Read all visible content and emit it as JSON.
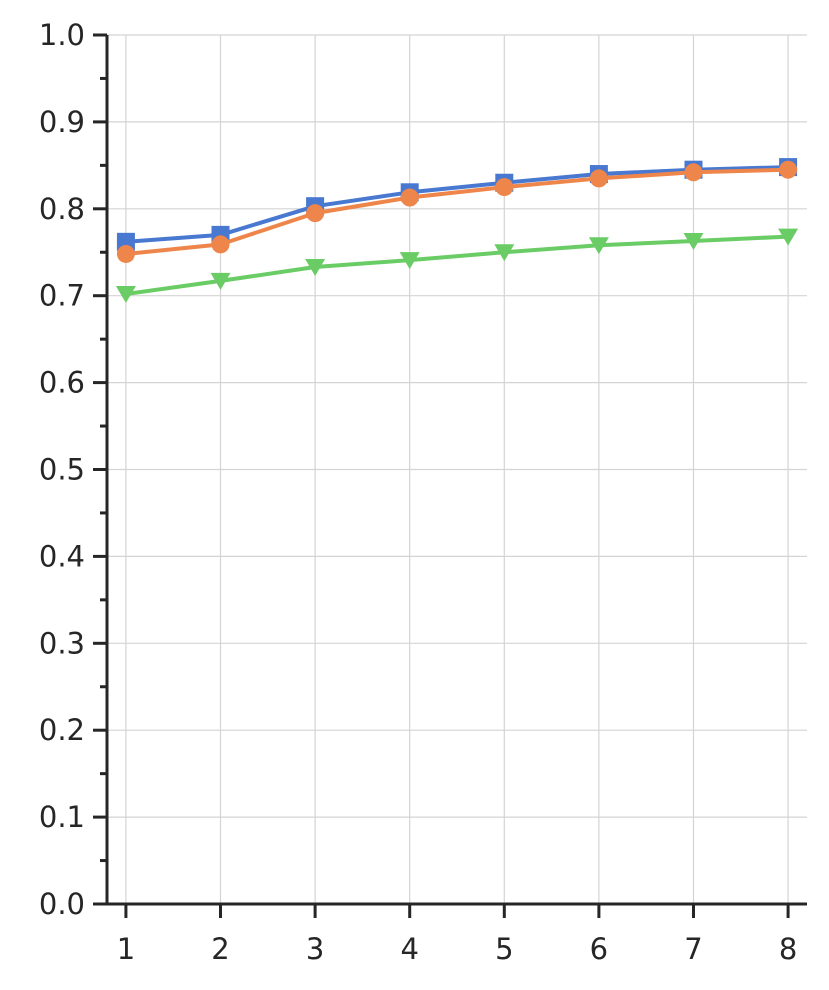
{
  "chart_data": {
    "type": "line",
    "title": "",
    "xlabel": "",
    "ylabel": "",
    "x": [
      1,
      2,
      3,
      4,
      5,
      6,
      7,
      8
    ],
    "xlim": [
      0.8,
      8.2
    ],
    "ylim": [
      0.0,
      1.0
    ],
    "y_ticks": [
      0.0,
      0.1,
      0.2,
      0.3,
      0.4,
      0.5,
      0.6,
      0.7,
      0.8,
      0.9,
      1.0
    ],
    "y_tick_labels": [
      "0.0",
      "0.1",
      "0.2",
      "0.3",
      "0.4",
      "0.5",
      "0.6",
      "0.7",
      "0.8",
      "0.9",
      "1.0"
    ],
    "x_ticks": [
      1,
      2,
      3,
      4,
      5,
      6,
      7,
      8
    ],
    "x_tick_labels": [
      "1",
      "2",
      "3",
      "4",
      "5",
      "6",
      "7",
      "8"
    ],
    "grid": true,
    "legend": "none",
    "series": [
      {
        "marker": "square",
        "color": "#4878d0",
        "values": [
          0.762,
          0.77,
          0.803,
          0.819,
          0.83,
          0.84,
          0.845,
          0.848
        ]
      },
      {
        "marker": "circle",
        "color": "#ee854a",
        "values": [
          0.748,
          0.759,
          0.795,
          0.813,
          0.825,
          0.835,
          0.842,
          0.845
        ]
      },
      {
        "marker": "triangle-down",
        "color": "#6acc64",
        "values": [
          0.702,
          0.717,
          0.733,
          0.741,
          0.75,
          0.758,
          0.763,
          0.768
        ]
      }
    ]
  }
}
